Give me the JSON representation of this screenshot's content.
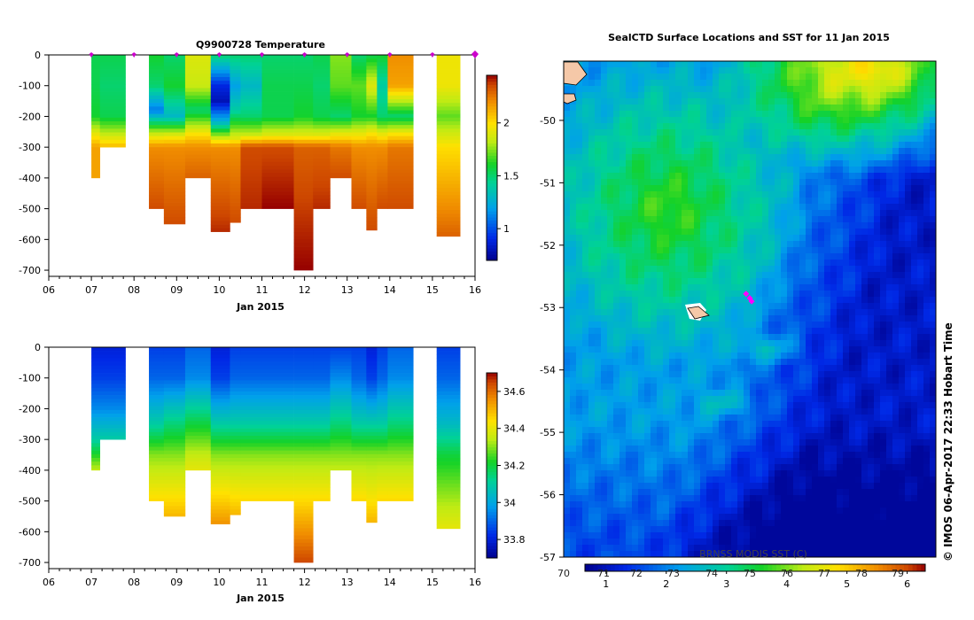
{
  "chart_data": [
    {
      "type": "heatmap",
      "id": "temperature",
      "title": "Q9900728  Temperature",
      "xlabel": "Jan 2015",
      "x_range": [
        6,
        16
      ],
      "x_ticks": [
        "06",
        "07",
        "08",
        "09",
        "10",
        "11",
        "12",
        "13",
        "14",
        "15",
        "16"
      ],
      "y_range": [
        -720,
        0
      ],
      "y_ticks": [
        "0",
        "-100",
        "-200",
        "-300",
        "-400",
        "-500",
        "-600",
        "-700"
      ],
      "colorbar": {
        "min": 0.7,
        "max": 2.45,
        "ticks": [
          "1",
          "1.5",
          "2"
        ]
      },
      "profile_markers": [
        7,
        8,
        9,
        10,
        11,
        12,
        13,
        14,
        15,
        16
      ],
      "profiles": [
        {
          "x0": 7.0,
          "x1": 7.2,
          "depth": 400,
          "t": [
            [
              0,
              1.55
            ],
            [
              100,
              1.55
            ],
            [
              200,
              1.6
            ],
            [
              260,
              1.95
            ],
            [
              300,
              2.15
            ]
          ]
        },
        {
          "x0": 7.2,
          "x1": 7.8,
          "depth": 300,
          "t": [
            [
              0,
              1.55
            ],
            [
              100,
              1.5
            ],
            [
              200,
              1.55
            ],
            [
              260,
              1.85
            ],
            [
              300,
              2.1
            ]
          ]
        },
        {
          "x0": 8.35,
          "x1": 8.7,
          "depth": 500,
          "t": [
            [
              0,
              1.6
            ],
            [
              100,
              1.5
            ],
            [
              180,
              1.1
            ],
            [
              250,
              1.8
            ],
            [
              300,
              2.2
            ],
            [
              500,
              2.35
            ]
          ]
        },
        {
          "x0": 8.7,
          "x1": 9.2,
          "depth": 550,
          "t": [
            [
              0,
              1.5
            ],
            [
              100,
              1.6
            ],
            [
              200,
              1.3
            ],
            [
              260,
              1.9
            ],
            [
              300,
              2.2
            ],
            [
              550,
              2.35
            ]
          ]
        },
        {
          "x0": 9.2,
          "x1": 9.8,
          "depth": 400,
          "t": [
            [
              0,
              1.9
            ],
            [
              100,
              1.85
            ],
            [
              180,
              1.5
            ],
            [
              260,
              2.0
            ],
            [
              300,
              2.2
            ],
            [
              400,
              2.3
            ]
          ]
        },
        {
          "x0": 9.8,
          "x1": 10.25,
          "depth": 575,
          "t": [
            [
              0,
              1.5
            ],
            [
              100,
              0.9
            ],
            [
              150,
              0.8
            ],
            [
              220,
              1.3
            ],
            [
              300,
              2.2
            ],
            [
              575,
              2.4
            ]
          ]
        },
        {
          "x0": 10.25,
          "x1": 10.5,
          "depth": 545,
          "t": [
            [
              0,
              1.5
            ],
            [
              100,
              1.2
            ],
            [
              180,
              1.4
            ],
            [
              270,
              1.9
            ],
            [
              300,
              2.2
            ],
            [
              545,
              2.35
            ]
          ]
        },
        {
          "x0": 10.5,
          "x1": 11.0,
          "depth": 500,
          "t": [
            [
              0,
              1.5
            ],
            [
              100,
              1.3
            ],
            [
              200,
              1.5
            ],
            [
              260,
              1.85
            ],
            [
              300,
              2.35
            ],
            [
              500,
              2.4
            ]
          ]
        },
        {
          "x0": 11.0,
          "x1": 11.75,
          "depth": 500,
          "t": [
            [
              0,
              1.5
            ],
            [
              100,
              1.55
            ],
            [
              200,
              1.55
            ],
            [
              260,
              1.9
            ],
            [
              300,
              2.35
            ],
            [
              500,
              2.45
            ]
          ]
        },
        {
          "x0": 11.75,
          "x1": 12.2,
          "depth": 700,
          "t": [
            [
              0,
              1.5
            ],
            [
              100,
              1.55
            ],
            [
              200,
              1.6
            ],
            [
              260,
              1.9
            ],
            [
              300,
              2.3
            ],
            [
              700,
              2.45
            ]
          ]
        },
        {
          "x0": 12.2,
          "x1": 12.6,
          "depth": 500,
          "t": [
            [
              0,
              1.55
            ],
            [
              100,
              1.5
            ],
            [
              200,
              1.55
            ],
            [
              260,
              1.9
            ],
            [
              300,
              2.3
            ],
            [
              500,
              2.4
            ]
          ]
        },
        {
          "x0": 12.6,
          "x1": 13.1,
          "depth": 400,
          "t": [
            [
              0,
              1.75
            ],
            [
              100,
              1.7
            ],
            [
              200,
              1.5
            ],
            [
              260,
              1.95
            ],
            [
              300,
              2.25
            ],
            [
              400,
              2.35
            ]
          ]
        },
        {
          "x0": 13.1,
          "x1": 13.45,
          "depth": 500,
          "t": [
            [
              0,
              1.5
            ],
            [
              100,
              1.7
            ],
            [
              200,
              1.6
            ],
            [
              260,
              1.95
            ],
            [
              300,
              2.2
            ],
            [
              500,
              2.35
            ]
          ]
        },
        {
          "x0": 13.45,
          "x1": 13.7,
          "depth": 570,
          "t": [
            [
              0,
              1.55
            ],
            [
              100,
              1.9
            ],
            [
              200,
              1.6
            ],
            [
              260,
              2.0
            ],
            [
              300,
              2.2
            ],
            [
              570,
              2.35
            ]
          ]
        },
        {
          "x0": 13.7,
          "x1": 13.95,
          "depth": 500,
          "t": [
            [
              0,
              1.6
            ],
            [
              100,
              1.4
            ],
            [
              200,
              1.5
            ],
            [
              260,
              1.95
            ],
            [
              300,
              2.2
            ],
            [
              500,
              2.35
            ]
          ]
        },
        {
          "x0": 13.95,
          "x1": 14.55,
          "depth": 500,
          "t": [
            [
              0,
              2.2
            ],
            [
              100,
              2.15
            ],
            [
              200,
              1.5
            ],
            [
              260,
              2.0
            ],
            [
              300,
              2.25
            ],
            [
              500,
              2.35
            ]
          ]
        },
        {
          "x0": 15.1,
          "x1": 15.65,
          "depth": 590,
          "t": [
            [
              0,
              1.95
            ],
            [
              100,
              1.95
            ],
            [
              200,
              1.7
            ],
            [
              300,
              2.0
            ],
            [
              590,
              2.3
            ]
          ]
        }
      ]
    },
    {
      "type": "heatmap",
      "id": "salinity",
      "title": "",
      "xlabel": "Jan 2015",
      "x_range": [
        6,
        16
      ],
      "x_ticks": [
        "06",
        "07",
        "08",
        "09",
        "10",
        "11",
        "12",
        "13",
        "14",
        "15",
        "16"
      ],
      "y_range": [
        -720,
        0
      ],
      "y_ticks": [
        "0",
        "-100",
        "-200",
        "-300",
        "-400",
        "-500",
        "-600",
        "-700"
      ],
      "colorbar": {
        "min": 33.7,
        "max": 34.7,
        "ticks": [
          "33.8",
          "34",
          "34.2",
          "34.4",
          "34.6"
        ]
      },
      "profiles": [
        {
          "x0": 7.0,
          "x1": 7.2,
          "depth": 400,
          "t": [
            [
              0,
              33.8
            ],
            [
              100,
              33.85
            ],
            [
              200,
              33.95
            ],
            [
              300,
              34.1
            ],
            [
              400,
              34.35
            ]
          ]
        },
        {
          "x0": 7.2,
          "x1": 7.8,
          "depth": 300,
          "t": [
            [
              0,
              33.8
            ],
            [
              100,
              33.85
            ],
            [
              200,
              33.95
            ],
            [
              300,
              34.1
            ]
          ]
        },
        {
          "x0": 8.35,
          "x1": 8.7,
          "depth": 500,
          "t": [
            [
              0,
              33.85
            ],
            [
              100,
              33.9
            ],
            [
              250,
              34.1
            ],
            [
              350,
              34.3
            ],
            [
              500,
              34.45
            ]
          ]
        },
        {
          "x0": 8.7,
          "x1": 9.2,
          "depth": 550,
          "t": [
            [
              0,
              33.85
            ],
            [
              100,
              33.9
            ],
            [
              250,
              34.15
            ],
            [
              350,
              34.3
            ],
            [
              550,
              34.5
            ]
          ]
        },
        {
          "x0": 9.2,
          "x1": 9.8,
          "depth": 400,
          "t": [
            [
              0,
              33.9
            ],
            [
              100,
              33.95
            ],
            [
              250,
              34.2
            ],
            [
              350,
              34.35
            ],
            [
              400,
              34.4
            ]
          ]
        },
        {
          "x0": 9.8,
          "x1": 10.25,
          "depth": 575,
          "t": [
            [
              0,
              33.8
            ],
            [
              100,
              33.85
            ],
            [
              250,
              34.1
            ],
            [
              350,
              34.3
            ],
            [
              575,
              34.55
            ]
          ]
        },
        {
          "x0": 10.25,
          "x1": 10.5,
          "depth": 545,
          "t": [
            [
              0,
              33.85
            ],
            [
              100,
              33.9
            ],
            [
              250,
              34.1
            ],
            [
              350,
              34.3
            ],
            [
              545,
              34.5
            ]
          ]
        },
        {
          "x0": 10.5,
          "x1": 11.0,
          "depth": 500,
          "t": [
            [
              0,
              33.85
            ],
            [
              100,
              33.9
            ],
            [
              250,
              34.1
            ],
            [
              350,
              34.3
            ],
            [
              500,
              34.45
            ]
          ]
        },
        {
          "x0": 11.0,
          "x1": 11.75,
          "depth": 500,
          "t": [
            [
              0,
              33.85
            ],
            [
              100,
              33.9
            ],
            [
              250,
              34.1
            ],
            [
              350,
              34.3
            ],
            [
              500,
              34.45
            ]
          ]
        },
        {
          "x0": 11.75,
          "x1": 12.2,
          "depth": 700,
          "t": [
            [
              0,
              33.85
            ],
            [
              100,
              33.9
            ],
            [
              250,
              34.1
            ],
            [
              350,
              34.3
            ],
            [
              500,
              34.45
            ],
            [
              700,
              34.65
            ]
          ]
        },
        {
          "x0": 12.2,
          "x1": 12.6,
          "depth": 500,
          "t": [
            [
              0,
              33.85
            ],
            [
              100,
              33.9
            ],
            [
              250,
              34.1
            ],
            [
              350,
              34.3
            ],
            [
              500,
              34.45
            ]
          ]
        },
        {
          "x0": 12.6,
          "x1": 13.1,
          "depth": 400,
          "t": [
            [
              0,
              33.85
            ],
            [
              100,
              33.95
            ],
            [
              250,
              34.15
            ],
            [
              350,
              34.3
            ],
            [
              400,
              34.35
            ]
          ]
        },
        {
          "x0": 13.1,
          "x1": 13.45,
          "depth": 500,
          "t": [
            [
              0,
              33.85
            ],
            [
              100,
              33.9
            ],
            [
              250,
              34.1
            ],
            [
              350,
              34.3
            ],
            [
              500,
              34.45
            ]
          ]
        },
        {
          "x0": 13.45,
          "x1": 13.7,
          "depth": 570,
          "t": [
            [
              0,
              33.8
            ],
            [
              100,
              33.85
            ],
            [
              250,
              34.1
            ],
            [
              350,
              34.3
            ],
            [
              570,
              34.5
            ]
          ]
        },
        {
          "x0": 13.7,
          "x1": 13.95,
          "depth": 500,
          "t": [
            [
              0,
              33.85
            ],
            [
              100,
              33.9
            ],
            [
              250,
              34.1
            ],
            [
              350,
              34.3
            ],
            [
              500,
              34.45
            ]
          ]
        },
        {
          "x0": 13.95,
          "x1": 14.55,
          "depth": 500,
          "t": [
            [
              0,
              33.9
            ],
            [
              100,
              33.95
            ],
            [
              250,
              34.15
            ],
            [
              350,
              34.3
            ],
            [
              500,
              34.45
            ]
          ]
        },
        {
          "x0": 15.1,
          "x1": 15.65,
          "depth": 590,
          "t": [
            [
              0,
              33.85
            ],
            [
              100,
              33.9
            ],
            [
              250,
              34.05
            ],
            [
              350,
              34.2
            ],
            [
              590,
              34.4
            ]
          ]
        }
      ]
    },
    {
      "type": "heatmap",
      "id": "sst-map",
      "title": "SealCTD Surface Locations and SST for 11 Jan 2015",
      "y_range": [
        -57,
        -49.05
      ],
      "y_ticks": [
        "-50",
        "-51",
        "-52",
        "-53",
        "-54",
        "-55",
        "-56",
        "-57"
      ],
      "colorbar_label": "BRNSS MODIS SST (C)",
      "colorbar_top_ticks": [
        "70",
        "71",
        "72",
        "73",
        "74",
        "75",
        "76",
        "77",
        "78",
        "79"
      ],
      "colorbar_bottom_ticks": [
        "1",
        "2",
        "3",
        "4",
        "5",
        "6"
      ],
      "colorbar_range_c": [
        0.65,
        6.3
      ],
      "seal_positions": [
        {
          "lon_frac": 0.49,
          "lat": -52.78
        },
        {
          "lon_frac": 0.5,
          "lat": -52.85
        },
        {
          "lon_frac": 0.505,
          "lat": -52.9
        }
      ],
      "island": {
        "lon_frac": 0.36,
        "lat": -53.05
      },
      "credit": "© IMOS 06-Apr-2017 22:33 Hobart Time"
    }
  ],
  "colors": {
    "profile_marker": "#cc00cc",
    "seal_marker": "#ff00ff",
    "land": "#f5c8a8"
  }
}
